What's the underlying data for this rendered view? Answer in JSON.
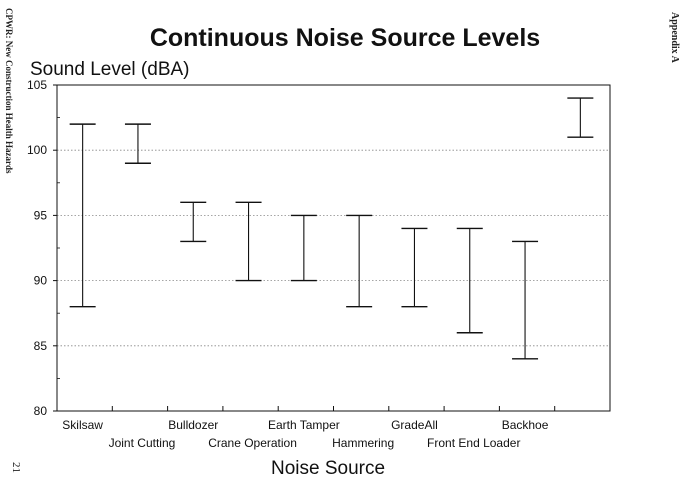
{
  "page": {
    "left_margin_text": "CPWR: New Construction Health Hazards",
    "right_margin_text": "Appendix A",
    "page_number": "21"
  },
  "colors": {
    "ink": "#111111",
    "grid": "#888888",
    "background": "#ffffff"
  },
  "chart_data": {
    "type": "range-bar",
    "title": "Continuous Noise Source Levels",
    "ylabel": "Sound Level (dBA)",
    "xlabel": "Noise Source",
    "ylim": [
      80,
      105
    ],
    "yticks": [
      "80",
      "85",
      "90",
      "95",
      "100",
      "105"
    ],
    "grid": true,
    "categories": [
      "Skilsaw",
      "Joint Cutting",
      "Bulldozer",
      "Crane Operation",
      "Earth Tamper",
      "Hammering",
      "GradeAll",
      "Front End Loader",
      "Backhoe",
      ""
    ],
    "ranges": [
      {
        "low": 88,
        "high": 102
      },
      {
        "low": 99,
        "high": 102
      },
      {
        "low": 93,
        "high": 96
      },
      {
        "low": 90,
        "high": 96
      },
      {
        "low": 90,
        "high": 95
      },
      {
        "low": 88,
        "high": 95
      },
      {
        "low": 88,
        "high": 94
      },
      {
        "low": 86,
        "high": 94
      },
      {
        "low": 84,
        "high": 93
      },
      {
        "low": 101,
        "high": 104
      }
    ]
  }
}
